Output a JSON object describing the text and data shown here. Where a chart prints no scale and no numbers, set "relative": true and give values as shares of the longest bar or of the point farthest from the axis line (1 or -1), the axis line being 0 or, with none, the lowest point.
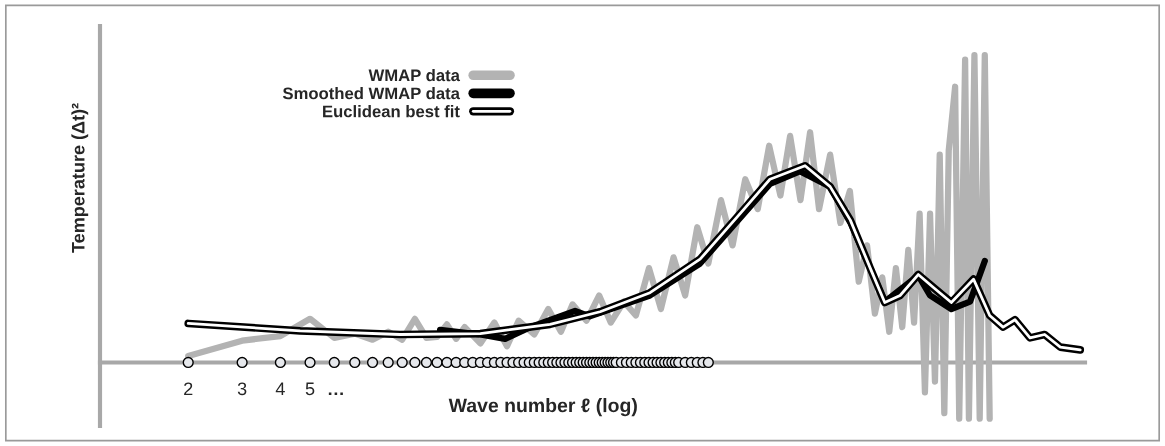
{
  "chart_data": {
    "type": "line",
    "relative": true,
    "log": "x",
    "xlabel": "Wave number ℓ (log)",
    "ylabel": "Temperature (Δt)²",
    "xlim": [
      1.03,
      1700
    ],
    "xticks": [
      2,
      3,
      4,
      5
    ],
    "tick_labels": "x",
    "legend": "top left",
    "annotations": [
      "…"
    ],
    "series": [
      {
        "name": "WMAP data",
        "color": "#b3b3b3",
        "x": [
          2,
          3,
          4,
          5,
          6,
          7,
          8,
          9,
          10,
          11,
          12,
          13,
          14,
          15,
          16,
          18,
          20,
          22,
          24,
          27,
          30,
          33,
          36,
          40,
          44,
          48,
          53,
          58,
          64,
          70,
          77,
          84,
          92,
          100,
          110,
          120,
          132,
          145,
          158,
          172,
          185,
          200,
          215,
          230,
          250,
          270,
          290,
          310,
          330,
          350,
          370,
          390,
          410,
          430,
          450,
          470,
          490,
          510,
          530,
          550,
          570,
          590,
          610,
          640,
          660,
          690,
          710,
          740,
          770,
          800,
          830
        ],
        "values": [
          0.021,
          0.071,
          0.086,
          0.142,
          0.08,
          0.094,
          0.074,
          0.1,
          0.074,
          0.142,
          0.08,
          0.083,
          0.124,
          0.077,
          0.115,
          0.062,
          0.13,
          0.053,
          0.136,
          0.091,
          0.174,
          0.1,
          0.189,
          0.136,
          0.218,
          0.13,
          0.198,
          0.153,
          0.307,
          0.174,
          0.342,
          0.218,
          0.44,
          0.322,
          0.528,
          0.381,
          0.596,
          0.499,
          0.705,
          0.543,
          0.737,
          0.528,
          0.749,
          0.499,
          0.676,
          0.454,
          0.558,
          0.263,
          0.381,
          0.159,
          0.277,
          0.1,
          0.307,
          0.115,
          0.366,
          0.13,
          0.484,
          -0.097,
          0.484,
          -0.062,
          0.676,
          -0.165,
          0.69,
          0.897,
          -0.183,
          0.985,
          -0.183,
          1.0,
          -0.183,
          1.0,
          -0.183
        ]
      },
      {
        "name": "Smoothed WMAP data",
        "color": "#000000",
        "x": [
          13.3,
          18,
          21.7,
          26.2,
          36.7,
          41,
          64.5,
          94,
          159,
          199,
          250,
          291,
          377,
          485,
          530,
          622,
          716,
          800
        ],
        "values": [
          0.106,
          0.091,
          0.077,
          0.115,
          0.168,
          0.15,
          0.218,
          0.322,
          0.581,
          0.622,
          0.572,
          0.455,
          0.198,
          0.283,
          0.218,
          0.174,
          0.198,
          0.33
        ]
      },
      {
        "name": "Euclidean best fit",
        "color": "#000000",
        "x": [
          2,
          4.64,
          9.85,
          18,
          30.4,
          44.3,
          64.5,
          94,
          127,
          159,
          207,
          250,
          291,
          338,
          377,
          423,
          485,
          551,
          622,
          735,
          830,
          918,
          1004,
          1124,
          1255,
          1412,
          1640
        ],
        "values": [
          0.127,
          0.103,
          0.091,
          0.094,
          0.124,
          0.165,
          0.227,
          0.336,
          0.484,
          0.596,
          0.64,
          0.572,
          0.463,
          0.307,
          0.195,
          0.218,
          0.286,
          0.239,
          0.195,
          0.271,
          0.153,
          0.115,
          0.139,
          0.08,
          0.091,
          0.05,
          0.041
        ]
      },
      {
        "type": "scatter",
        "color": "#e6e8ec",
        "x": [
          2,
          3,
          4,
          5,
          6,
          7,
          8,
          9,
          10,
          11,
          12,
          13,
          14,
          15,
          16,
          17,
          18,
          19,
          20,
          21,
          22,
          23,
          24,
          25,
          26,
          27,
          28,
          29,
          30,
          31,
          32,
          33,
          34,
          35,
          36,
          37,
          38,
          39,
          40,
          41,
          42,
          43,
          44,
          45,
          46,
          47,
          48,
          49,
          50,
          52,
          54,
          56,
          58,
          60,
          62,
          64,
          66,
          68,
          70,
          72,
          74,
          76,
          78,
          80,
          84,
          88,
          92,
          96,
          100
        ],
        "values": [
          0,
          0,
          0,
          0,
          0,
          0,
          0,
          0,
          0,
          0,
          0,
          0,
          0,
          0,
          0,
          0,
          0,
          0,
          0,
          0,
          0,
          0,
          0,
          0,
          0,
          0,
          0,
          0,
          0,
          0,
          0,
          0,
          0,
          0,
          0,
          0,
          0,
          0,
          0,
          0,
          0,
          0,
          0,
          0,
          0,
          0,
          0,
          0,
          0,
          0,
          0,
          0,
          0,
          0,
          0,
          0,
          0,
          0,
          0,
          0,
          0,
          0,
          0,
          0,
          0,
          0,
          0,
          0,
          0
        ]
      }
    ]
  }
}
